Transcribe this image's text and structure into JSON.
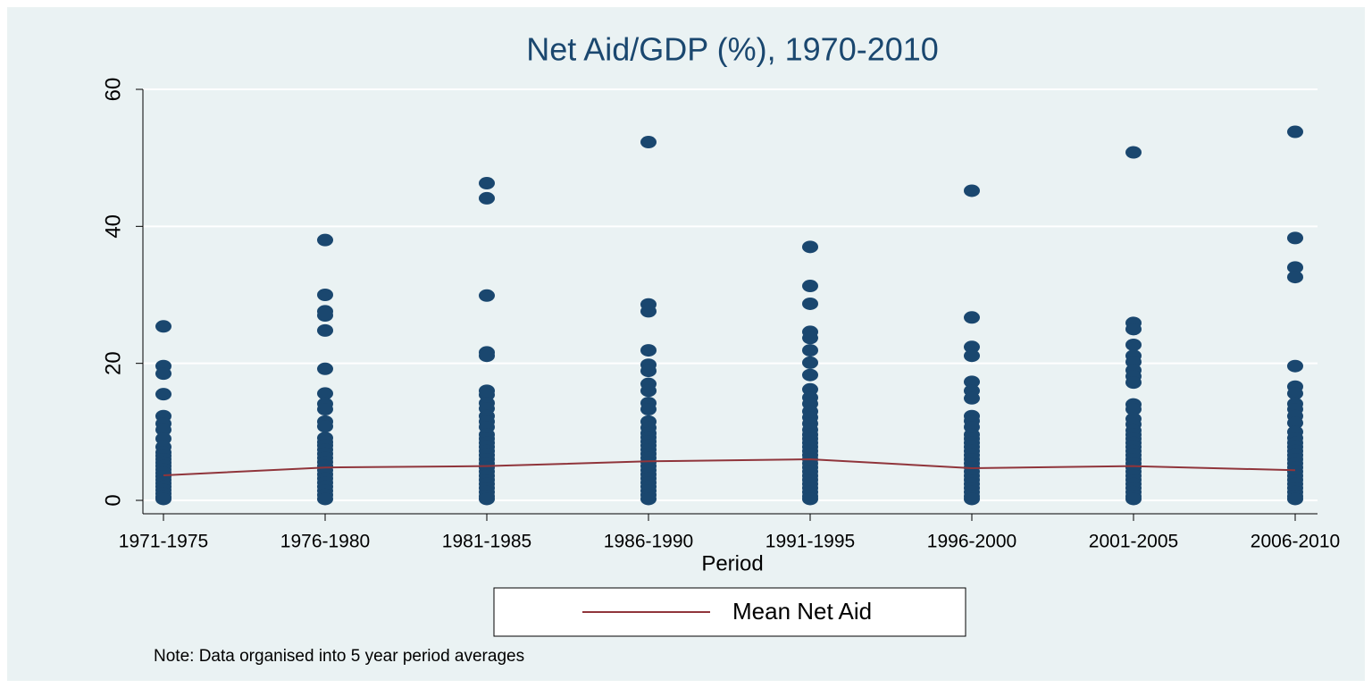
{
  "chart_data": {
    "type": "scatter",
    "title": "Net Aid/GDP (%), 1970-2010",
    "x_label": "Period",
    "note": "Note: Data organised into 5 year period averages",
    "categories": [
      "1971-1975",
      "1976-1980",
      "1981-1985",
      "1986-1990",
      "1991-1995",
      "1996-2000",
      "2001-2005",
      "2006-2010"
    ],
    "point_color": "#1a476f",
    "points": [
      [
        25.4,
        19.6,
        18.5,
        15.5,
        12.3,
        11.2,
        10.3,
        9.0,
        7.8,
        7,
        6.5,
        6,
        5.5,
        5,
        4.5,
        4,
        3.5,
        3,
        2.5,
        2,
        1.5,
        1,
        0.5,
        0.2
      ],
      [
        38,
        30,
        27.6,
        27,
        24.8,
        19.2,
        15.6,
        14.1,
        13.3,
        11.5,
        10.8,
        9.1,
        8.5,
        8,
        7.4,
        6.8,
        6.2,
        5.6,
        5,
        4.4,
        3.8,
        3.2,
        2.6,
        2,
        1.4,
        0.8,
        0.2
      ],
      [
        46.3,
        44.1,
        29.9,
        21.6,
        21.1,
        16,
        15.4,
        14.2,
        13.4,
        12.3,
        11.5,
        10.7,
        9.6,
        9,
        8.4,
        7.8,
        7.2,
        6.6,
        6,
        5.4,
        4.8,
        4.2,
        3.6,
        3,
        2.4,
        1.8,
        1.2,
        0.6,
        0.2
      ],
      [
        52.3,
        28.6,
        27.6,
        21.9,
        19.8,
        18.9,
        17,
        16,
        14.2,
        13.3,
        11.5,
        10.6,
        9.8,
        9.2,
        8.6,
        8,
        7.4,
        6.8,
        6.2,
        5.6,
        5,
        4.4,
        3.8,
        3.2,
        2.6,
        2,
        1.4,
        0.8,
        0.2
      ],
      [
        37,
        31.3,
        28.7,
        24.6,
        23.7,
        21.9,
        20.1,
        18.3,
        16.2,
        15,
        14.1,
        13,
        12.1,
        11.2,
        10.3,
        9.6,
        9,
        8.4,
        7.8,
        7.2,
        6.6,
        6,
        5.4,
        4.8,
        4.2,
        3.6,
        3,
        2.4,
        1.8,
        1.2,
        0.6,
        0.2
      ],
      [
        45.2,
        26.7,
        22.4,
        21.1,
        17.3,
        16,
        14.9,
        12.3,
        11.6,
        10.7,
        9.6,
        9,
        8.4,
        7.8,
        7.2,
        6.6,
        6,
        5.4,
        4.8,
        4.2,
        3.6,
        3,
        2.4,
        1.8,
        1.2,
        0.6,
        0.2
      ],
      [
        50.8,
        25.9,
        25,
        22.7,
        21.1,
        20.2,
        19,
        18.1,
        17.2,
        14,
        13.3,
        11.9,
        11.1,
        10.2,
        9.6,
        9,
        8.4,
        7.8,
        7.2,
        6.6,
        6,
        5.4,
        4.8,
        4.2,
        3.6,
        3,
        2.4,
        1.8,
        1.2,
        0.6,
        0.2
      ],
      [
        53.8,
        38.3,
        34,
        32.6,
        19.6,
        16.6,
        15.6,
        14.1,
        13.3,
        12.3,
        11.3,
        10,
        9.1,
        8.4,
        7.8,
        7.2,
        6.6,
        6,
        5.4,
        4.8,
        4.2,
        3.6,
        3,
        2.4,
        1.8,
        1.2,
        0.6,
        0.2
      ]
    ],
    "series": [
      {
        "name": "Mean Net Aid",
        "type": "line",
        "color": "#90353b",
        "values": [
          3.65,
          4.8,
          5.0,
          5.7,
          6.0,
          4.7,
          5.0,
          4.4
        ]
      }
    ],
    "ylim": [
      0,
      60
    ],
    "yticks": [
      0,
      20,
      40,
      60
    ],
    "grid": true,
    "legend": "bottom"
  }
}
